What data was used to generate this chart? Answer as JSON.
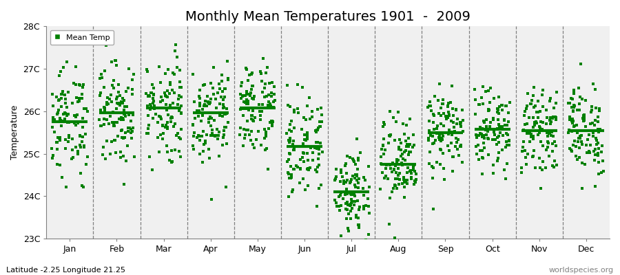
{
  "title": "Monthly Mean Temperatures 1901  -  2009",
  "ylabel": "Temperature",
  "footer_left": "Latitude -2.25 Longitude 21.25",
  "footer_right": "worldspecies.org",
  "legend_label": "Mean Temp",
  "months": [
    "Jan",
    "Feb",
    "Mar",
    "Apr",
    "May",
    "Jun",
    "Jul",
    "Aug",
    "Sep",
    "Oct",
    "Nov",
    "Dec"
  ],
  "ylim": [
    23.0,
    28.0
  ],
  "yticks": [
    23,
    24,
    25,
    26,
    27,
    28
  ],
  "ytick_labels": [
    "23C",
    "24C",
    "25C",
    "26C",
    "27C",
    "28C"
  ],
  "dot_color": "#008000",
  "background_color": "#ffffff",
  "plot_bg_color": "#f0f0f0",
  "n_years": 109,
  "monthly_means": [
    25.75,
    25.97,
    26.07,
    25.97,
    26.07,
    25.17,
    24.1,
    24.75,
    25.5,
    25.57,
    25.55,
    25.55
  ],
  "monthly_stds": [
    0.65,
    0.62,
    0.65,
    0.58,
    0.55,
    0.6,
    0.62,
    0.55,
    0.48,
    0.45,
    0.45,
    0.55
  ],
  "seed": 12345,
  "title_fontsize": 14,
  "axis_fontsize": 9,
  "footer_fontsize": 8
}
